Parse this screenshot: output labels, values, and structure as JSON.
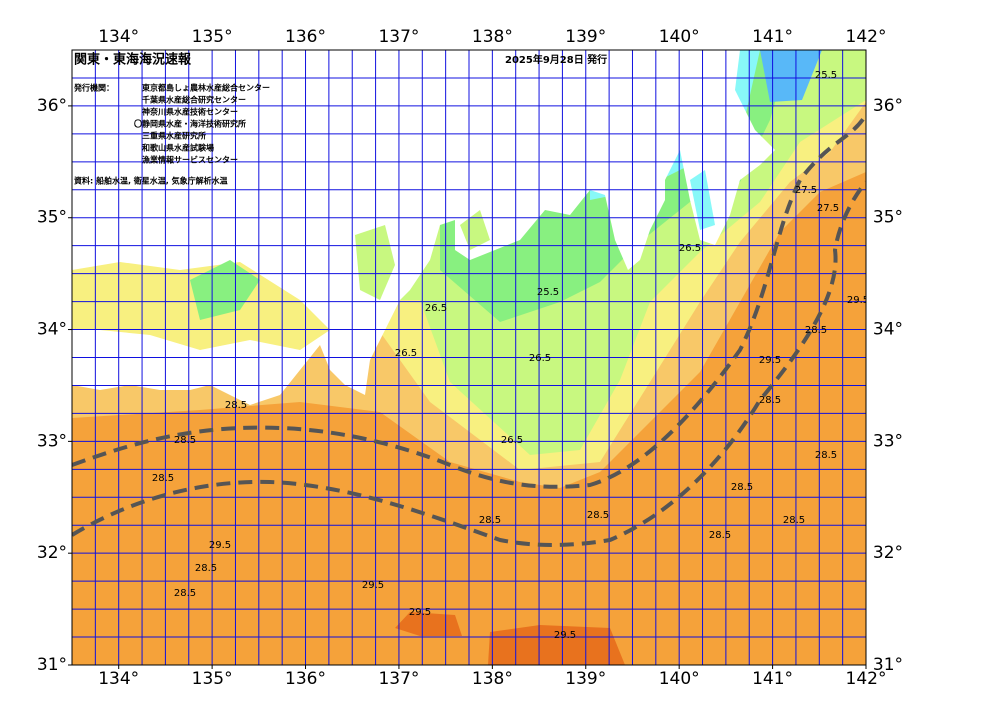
{
  "map": {
    "title": "関東・東海海況速報",
    "date": "2025年9月28日 発行",
    "issuers_label": "発行機関：",
    "issuers": [
      "東京都島しょ農林水産総合センター",
      "千葉県水産総合研究センター",
      "神奈川県水産技術センター",
      "〇静岡県水産・海洋技術研究所",
      "三重県水産研究所",
      "和歌山県水産試験場",
      "漁業情報サービスセンター"
    ],
    "source": "資料: 船舶水温, 衛星水温, 気象庁解析水温",
    "xlim": [
      133.5,
      142
    ],
    "ylim": [
      31,
      36.5
    ],
    "xticks": [
      {
        "value": 134,
        "label": "134°"
      },
      {
        "value": 135,
        "label": "135°"
      },
      {
        "value": 136,
        "label": "136°"
      },
      {
        "value": 137,
        "label": "137°"
      },
      {
        "value": 138,
        "label": "138°"
      },
      {
        "value": 139,
        "label": "139°"
      },
      {
        "value": 140,
        "label": "140°"
      },
      {
        "value": 141,
        "label": "141°"
      },
      {
        "value": 142,
        "label": "142°"
      }
    ],
    "yticks": [
      {
        "value": 31,
        "label": "31°"
      },
      {
        "value": 32,
        "label": "32°"
      },
      {
        "value": 33,
        "label": "33°"
      },
      {
        "value": 34,
        "label": "34°"
      },
      {
        "value": 35,
        "label": "35°"
      },
      {
        "value": 36,
        "label": "36°"
      }
    ],
    "contour_labels": [
      "25.5",
      "25.5",
      "26.5",
      "26.5",
      "26.5",
      "26.5",
      "26.5",
      "27.5",
      "27.5",
      "28.5",
      "28.5",
      "28.5",
      "28.5",
      "28.5",
      "28.5",
      "28.5",
      "28.5",
      "28.5",
      "28.5",
      "28.5",
      "29.5",
      "29.5",
      "29.5",
      "29.5",
      "29.5",
      "29.5",
      "28.5",
      "28.5"
    ]
  }
}
